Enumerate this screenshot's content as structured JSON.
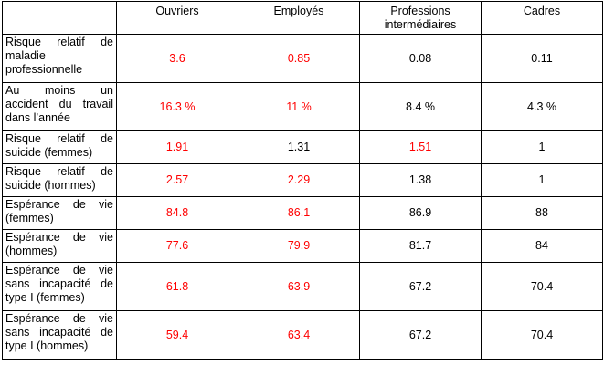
{
  "colors": {
    "highlight": "#ff0000",
    "normal": "#000000"
  },
  "table": {
    "headers": [
      "",
      "Ouvriers",
      "Employés",
      "Professions intermédiaires",
      "Cadres"
    ],
    "rows": [
      {
        "label": "Risque relatif de maladie professionnelle",
        "values": [
          "3.6",
          "0.85",
          "0.08",
          "0.11"
        ],
        "highlight": [
          true,
          true,
          false,
          false
        ]
      },
      {
        "label": "Au moins un accident du travail dans l’année",
        "values": [
          "16.3 %",
          "11 %",
          "8.4 %",
          "4.3 %"
        ],
        "highlight": [
          true,
          true,
          false,
          false
        ]
      },
      {
        "label": "Risque relatif de suicide (femmes)",
        "values": [
          "1.91",
          "1.31",
          "1.51",
          "1"
        ],
        "highlight": [
          true,
          false,
          true,
          false
        ]
      },
      {
        "label": "Risque relatif de suicide (hommes)",
        "values": [
          "2.57",
          "2.29",
          "1.38",
          "1"
        ],
        "highlight": [
          true,
          true,
          false,
          false
        ]
      },
      {
        "label": "Espérance de vie (femmes)",
        "values": [
          "84.8",
          "86.1",
          "86.9",
          "88"
        ],
        "highlight": [
          true,
          true,
          false,
          false
        ]
      },
      {
        "label": "Espérance de vie (hommes)",
        "values": [
          "77.6",
          "79.9",
          "81.7",
          "84"
        ],
        "highlight": [
          true,
          true,
          false,
          false
        ]
      },
      {
        "label": "Espérance de vie sans incapacité de type I (femmes)",
        "values": [
          "61.8",
          "63.9",
          "67.2",
          "70.4"
        ],
        "highlight": [
          true,
          true,
          false,
          false
        ]
      },
      {
        "label": "Espérance de vie sans incapacité de type I (hommes)",
        "values": [
          "59.4",
          "63.4",
          "67.2",
          "70.4"
        ],
        "highlight": [
          true,
          true,
          false,
          false
        ]
      }
    ]
  }
}
